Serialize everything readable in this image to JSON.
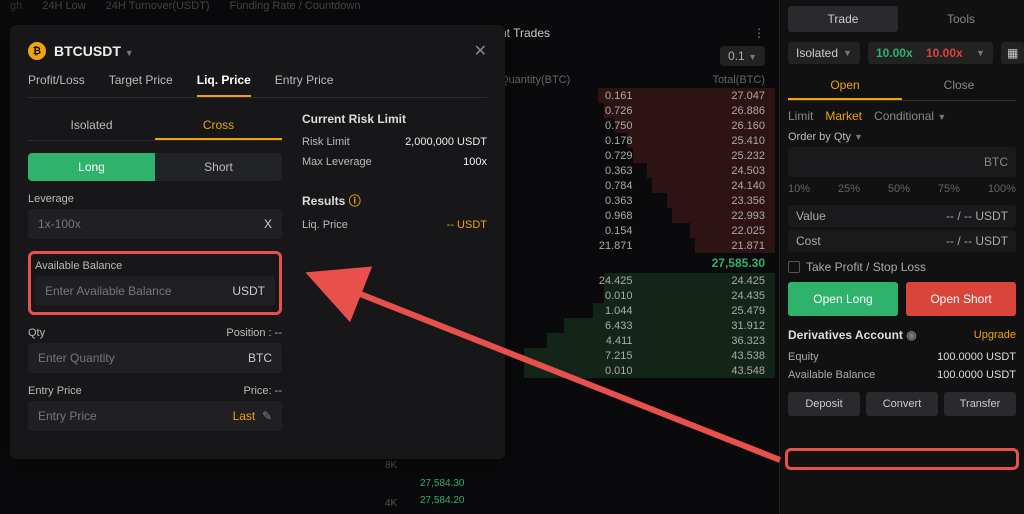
{
  "top_strip": [
    "24H Low",
    "24H Turnover(USDT)",
    "Funding Rate / Countdown"
  ],
  "right": {
    "trade": "Trade",
    "tools": "Tools",
    "isolated": "Isolated",
    "lev_green": "10.00x",
    "lev_red": "10.00x",
    "tabs": {
      "open": "Open",
      "close": "Close"
    },
    "modes": {
      "limit": "Limit",
      "market": "Market",
      "conditional": "Conditional"
    },
    "order_by_qty": "Order by Qty",
    "qty_unit": "BTC",
    "pct": [
      "10%",
      "25%",
      "50%",
      "75%",
      "100%"
    ],
    "value": "Value",
    "value_v": "-- / -- USDT",
    "cost": "Cost",
    "cost_v": "-- / -- USDT",
    "tp": "Take Profit / Stop Loss",
    "open_long": "Open Long",
    "open_short": "Open Short",
    "acct_title": "Derivatives Account",
    "upgrade": "Upgrade",
    "equity": "Equity",
    "equity_v": "100.0000 USDT",
    "avail": "Available Balance",
    "avail_v": "100.0000 USDT",
    "deposit": "Deposit",
    "convert": "Convert",
    "transfer": "Transfer"
  },
  "ob": {
    "head": "nt Trades",
    "amt": "0.1",
    "col_q": "Quantity(BTC)",
    "col_t": "Total(BTC)",
    "mid": "27,585.30",
    "asks": [
      {
        "q": "0.161",
        "t": "27.047",
        "d": 62
      },
      {
        "q": "0.726",
        "t": "26.886",
        "d": 60
      },
      {
        "q": "0.750",
        "t": "26.160",
        "d": 56
      },
      {
        "q": "0.178",
        "t": "25.410",
        "d": 52
      },
      {
        "q": "0.729",
        "t": "25.232",
        "d": 50
      },
      {
        "q": "0.363",
        "t": "24.503",
        "d": 45
      },
      {
        "q": "0.784",
        "t": "24.140",
        "d": 43
      },
      {
        "q": "0.363",
        "t": "23.356",
        "d": 38
      },
      {
        "q": "0.968",
        "t": "22.993",
        "d": 36
      },
      {
        "q": "0.154",
        "t": "22.025",
        "d": 30
      },
      {
        "q": "21.871",
        "t": "21.871",
        "d": 28
      }
    ],
    "bids": [
      {
        "q": "24.425",
        "t": "24.425",
        "d": 60
      },
      {
        "q": "0.010",
        "t": "24.435",
        "d": 60
      },
      {
        "q": "1.044",
        "t": "25.479",
        "d": 64
      },
      {
        "q": "6.433",
        "t": "31.912",
        "d": 74
      },
      {
        "q": "4.411",
        "t": "36.323",
        "d": 80
      },
      {
        "q": "7.215",
        "t": "43.538",
        "d": 88
      },
      {
        "q": "0.010",
        "t": "43.548",
        "d": 88
      }
    ]
  },
  "axis": {
    "l8k": "8K",
    "l4k": "4K",
    "p1": "27,584.30",
    "p2": "27,584.20"
  },
  "modal": {
    "pair": "BTCUSDT",
    "tabs": {
      "pl": "Profit/Loss",
      "tp": "Target Price",
      "liq": "Liq. Price",
      "ep": "Entry Price"
    },
    "margin": {
      "iso": "Isolated",
      "cross": "Cross"
    },
    "side": {
      "long": "Long",
      "short": "Short"
    },
    "lev_label": "Leverage",
    "lev_ph": "1x-100x",
    "lev_suffix": "X",
    "bal_label": "Available Balance",
    "bal_ph": "Enter Available Balance",
    "bal_suffix": "USDT",
    "qty_label": "Qty",
    "qty_pos": "Position :",
    "qty_pos_v": "--",
    "qty_ph": "Enter Quantity",
    "qty_suffix": "BTC",
    "ep_label": "Entry Price",
    "ep_price": "Price:",
    "ep_price_v": "--",
    "ep_ph": "Entry Price",
    "ep_last": "Last",
    "risk_title": "Current Risk Limit",
    "risk_limit": "Risk Limit",
    "risk_limit_v": "2,000,000 USDT",
    "max_lev": "Max Leverage",
    "max_lev_v": "100x",
    "results": "Results",
    "liq_price": "Liq. Price",
    "liq_price_v": "-- USDT"
  }
}
